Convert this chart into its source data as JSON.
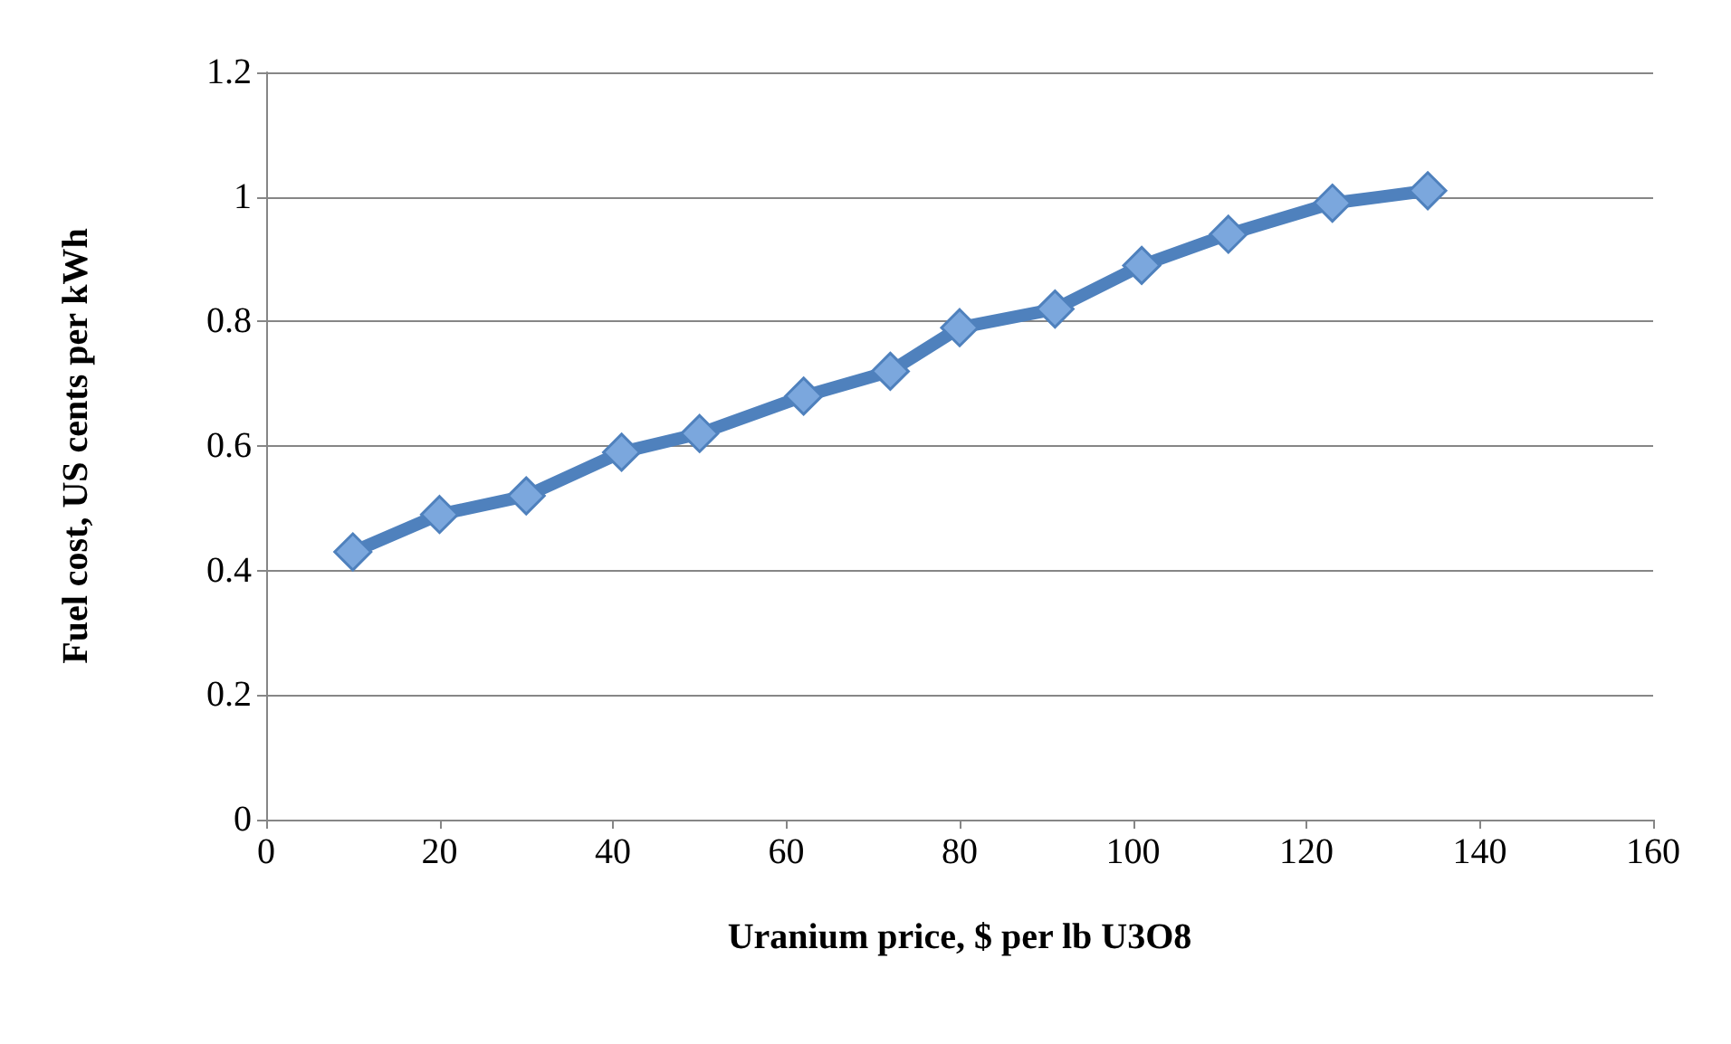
{
  "chart_data": {
    "type": "line",
    "xlabel": "Uranium price, $ per lb U3O8",
    "ylabel": "Fuel cost, US cents per kWh",
    "x": [
      10,
      20,
      30,
      41,
      50,
      62,
      72,
      80,
      91,
      101,
      111,
      123,
      134
    ],
    "series": [
      {
        "color": "#4f81bd",
        "values": [
          0.43,
          0.49,
          0.52,
          0.59,
          0.62,
          0.68,
          0.72,
          0.79,
          0.82,
          0.89,
          0.94,
          0.99,
          1.01
        ]
      }
    ],
    "xlim": [
      0,
      160
    ],
    "xticks": [
      0,
      20,
      40,
      60,
      80,
      100,
      120,
      140,
      160
    ],
    "ylim": [
      0,
      1.2
    ],
    "yticks": [
      0,
      0.2,
      0.4,
      0.6,
      0.8,
      1,
      1.2
    ],
    "grid": "y",
    "marker": "diamond",
    "line_style": "solid"
  }
}
